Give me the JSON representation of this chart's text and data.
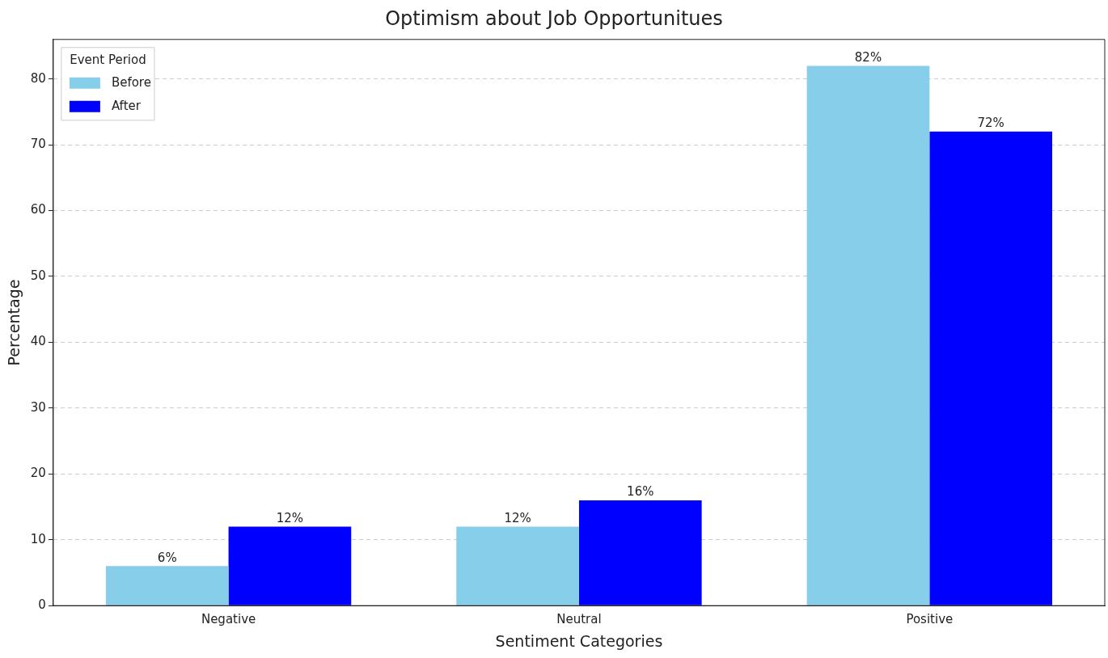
{
  "chart_data": {
    "type": "bar",
    "title": "Optimism about Job Opportunitues",
    "xlabel": "Sentiment Categories",
    "ylabel": "Percentage",
    "legend_title": "Event Period",
    "categories": [
      "Negative",
      "Neutral",
      "Positive"
    ],
    "series": [
      {
        "name": "Before",
        "color": "#87ceeb",
        "values": [
          6,
          12,
          82
        ],
        "value_labels": [
          "6%",
          "12%",
          "82%"
        ]
      },
      {
        "name": "After",
        "color": "#0000ff",
        "values": [
          12,
          16,
          72
        ],
        "value_labels": [
          "12%",
          "16%",
          "72%"
        ]
      }
    ],
    "ylim": [
      0,
      86
    ],
    "yticks": [
      0,
      10,
      20,
      30,
      40,
      50,
      60,
      70,
      80
    ],
    "grid": "y",
    "legend": "top left"
  }
}
